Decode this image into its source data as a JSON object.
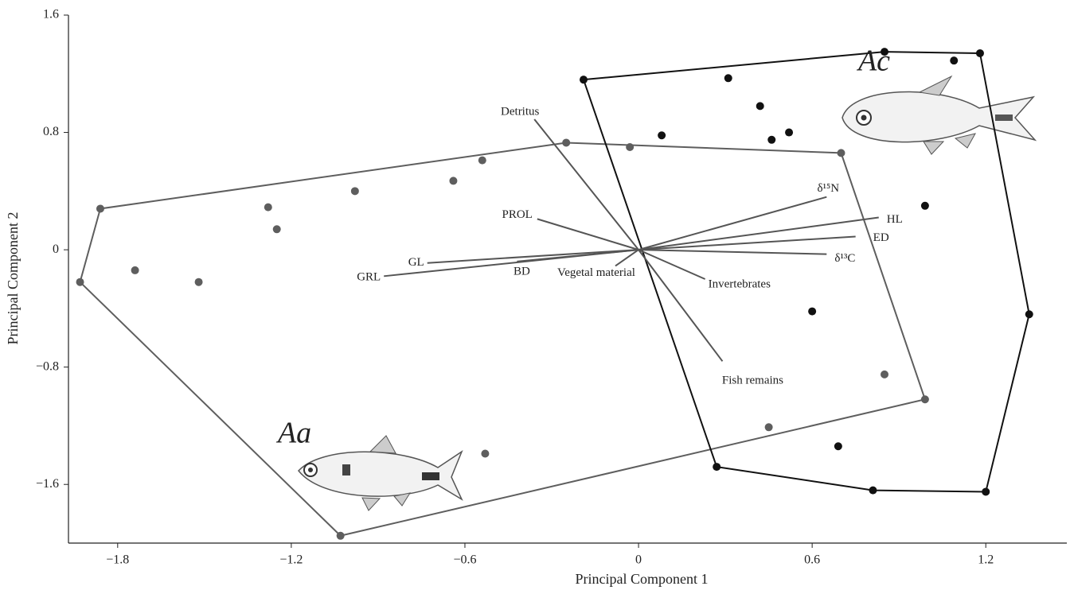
{
  "chart_data": {
    "type": "biplot",
    "x_label": "Principal Component 1",
    "y_label": "Principal Component 2",
    "xlim": [
      -1.97,
      1.48
    ],
    "ylim": [
      -2.0,
      1.6
    ],
    "xticks": [
      {
        "value": -1.8,
        "label": "−1.8"
      },
      {
        "value": -1.2,
        "label": "−1.2"
      },
      {
        "value": -0.6,
        "label": "−0.6"
      },
      0,
      0.6,
      1.2
    ],
    "yticks": [
      1.6,
      0.8,
      0,
      {
        "value": -0.8,
        "label": "−0.8"
      },
      {
        "value": -1.6,
        "label": "−1.6"
      }
    ],
    "series": [
      {
        "name": "Aa",
        "color": "#5e5e5e",
        "x": [
          -1.86,
          -1.93,
          -1.74,
          -1.52,
          -1.28,
          -1.25,
          -0.98,
          -0.64,
          -0.54,
          -0.25,
          -0.03,
          0.7,
          0.85,
          0.99,
          0.45,
          -0.53,
          -1.03
        ],
        "y": [
          0.28,
          -0.22,
          -0.14,
          -0.22,
          0.29,
          0.14,
          0.4,
          0.47,
          0.61,
          0.73,
          0.7,
          0.66,
          -0.85,
          -1.02,
          -1.21,
          -1.39,
          -1.95
        ]
      },
      {
        "name": "Ac",
        "color": "#111111",
        "x": [
          0.85,
          1.18,
          1.09,
          0.31,
          0.42,
          0.08,
          0.52,
          0.46,
          0.99,
          0.6,
          0.69,
          0.81,
          1.2,
          1.35,
          -0.19,
          0.27
        ],
        "y": [
          1.35,
          1.34,
          1.29,
          1.17,
          0.98,
          0.78,
          0.8,
          0.75,
          0.3,
          -0.42,
          -1.34,
          -1.64,
          -1.65,
          -0.44,
          1.16,
          -1.48
        ]
      }
    ],
    "vectors": [
      {
        "name": "Detritus",
        "x": -0.36,
        "y": 0.89
      },
      {
        "name": "PROL",
        "x": -0.35,
        "y": 0.21
      },
      {
        "name": "GL",
        "x": -0.73,
        "y": -0.09
      },
      {
        "name": "GRL",
        "x": -0.88,
        "y": -0.18
      },
      {
        "name": "BD",
        "x": -0.42,
        "y": -0.08
      },
      {
        "name": "Vegetal material",
        "x": -0.08,
        "y": -0.11
      },
      {
        "name": "Invertebrates",
        "x": 0.23,
        "y": -0.2
      },
      {
        "name": "Fish remains",
        "x": 0.29,
        "y": -0.76
      },
      {
        "name": "δ¹⁵N",
        "x": 0.65,
        "y": 0.36
      },
      {
        "name": "HL",
        "x": 0.83,
        "y": 0.22
      },
      {
        "name": "ED",
        "x": 0.75,
        "y": 0.09
      },
      {
        "name": "δ¹³C",
        "x": 0.65,
        "y": -0.03
      }
    ],
    "vector_color": "#555555"
  }
}
